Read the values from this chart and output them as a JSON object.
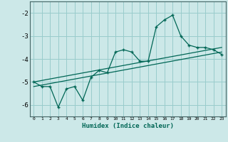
{
  "xlabel": "Humidex (Indice chaleur)",
  "background_color": "#cce8e8",
  "grid_color": "#99cccc",
  "line_color": "#006655",
  "xlim": [
    -0.5,
    23.5
  ],
  "ylim": [
    -6.5,
    -1.5
  ],
  "xtick_labels": [
    "0",
    "1",
    "2",
    "3",
    "4",
    "5",
    "6",
    "7",
    "8",
    "9",
    "10",
    "11",
    "12",
    "13",
    "14",
    "15",
    "16",
    "17",
    "18",
    "19",
    "20",
    "21",
    "22",
    "23"
  ],
  "ytick_values": [
    -6,
    -5,
    -4,
    -3,
    -2
  ],
  "line1_x": [
    0,
    1,
    2,
    3,
    4,
    5,
    6,
    7,
    8,
    9,
    10,
    11,
    12,
    13,
    14,
    15,
    16,
    17,
    18,
    19,
    20,
    21,
    22,
    23
  ],
  "line1_y": [
    -5.0,
    -5.2,
    -5.2,
    -6.1,
    -5.3,
    -5.2,
    -5.8,
    -4.8,
    -4.5,
    -4.6,
    -3.7,
    -3.6,
    -3.7,
    -4.1,
    -4.1,
    -2.6,
    -2.3,
    -2.1,
    -3.0,
    -3.4,
    -3.5,
    -3.5,
    -3.6,
    -3.8
  ],
  "line2_x": [
    0,
    23
  ],
  "line2_y": [
    -5.2,
    -3.7
  ],
  "line3_x": [
    0,
    23
  ],
  "line3_y": [
    -5.0,
    -3.5
  ]
}
